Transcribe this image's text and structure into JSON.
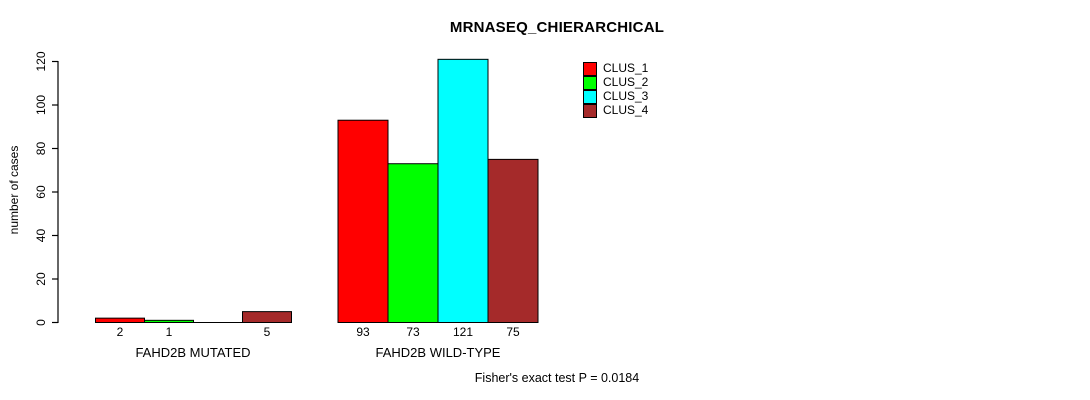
{
  "title": "MRNASEQ_CHIERARCHICAL",
  "footer": "Fisher's exact test P = 0.0184",
  "chart_data": {
    "type": "bar",
    "title": "MRNASEQ_CHIERARCHICAL",
    "xlabel": "",
    "ylabel": "number of cases",
    "yticks": [
      0,
      20,
      40,
      60,
      80,
      100,
      120
    ],
    "ylim": [
      0,
      121
    ],
    "grid": false,
    "legend_position": "top-right",
    "bar_border_color": "#000000",
    "groups": [
      {
        "label": "FAHD2B MUTATED",
        "values": [
          2,
          1,
          0,
          5
        ],
        "value_labels": [
          "2",
          "1",
          "",
          "5"
        ]
      },
      {
        "label": "FAHD2B WILD-TYPE",
        "values": [
          93,
          73,
          121,
          75
        ],
        "value_labels": [
          "93",
          "73",
          "121",
          "75"
        ]
      }
    ],
    "series": [
      {
        "name": "CLUS_1",
        "color": "#ff0000"
      },
      {
        "name": "CLUS_2",
        "color": "#00ff00"
      },
      {
        "name": "CLUS_3",
        "color": "#00ffff"
      },
      {
        "name": "CLUS_4",
        "color": "#a52a2a"
      }
    ],
    "annotation": "Fisher's exact test P = 0.0184"
  },
  "legend": {
    "items": [
      {
        "label": "CLUS_1",
        "color": "#ff0000"
      },
      {
        "label": "CLUS_2",
        "color": "#00ff00"
      },
      {
        "label": "CLUS_3",
        "color": "#00ffff"
      },
      {
        "label": "CLUS_4",
        "color": "#a52a2a"
      }
    ]
  }
}
